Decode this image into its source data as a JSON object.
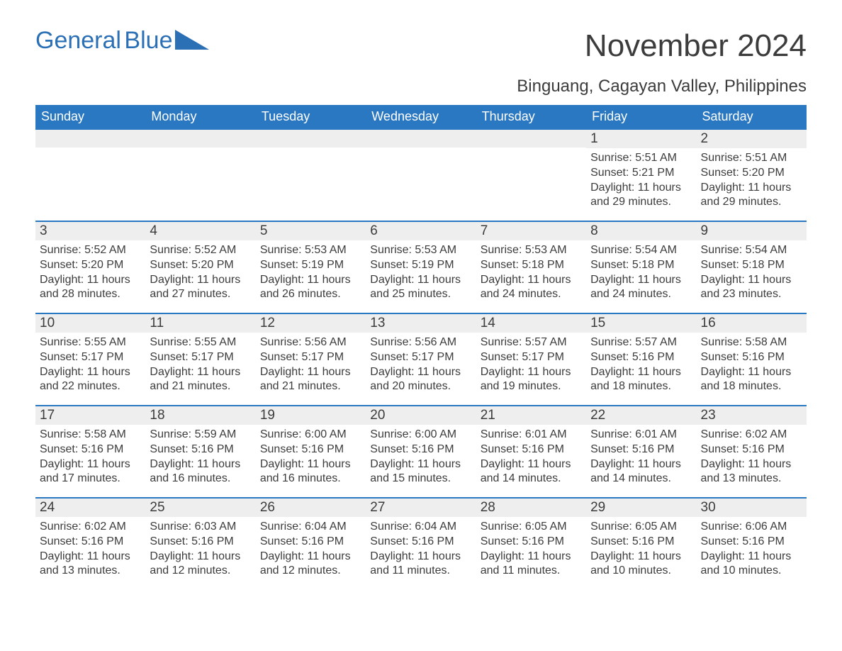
{
  "logo": {
    "text1": "General",
    "text2": "Blue"
  },
  "title": "November 2024",
  "subtitle": "Binguang, Cagayan Valley, Philippines",
  "colors": {
    "header_bg": "#2b78c2",
    "header_text": "#ffffff",
    "daynum_bg": "#eeeeee",
    "daynum_border": "#2b78c2",
    "text": "#3c3c3c",
    "logo_color": "#2b6fb5",
    "background": "#ffffff"
  },
  "fontsizes": {
    "title": 44,
    "subtitle": 24,
    "weekday_header": 18,
    "daynum": 19,
    "cell_text": 16
  },
  "weekdays": [
    "Sunday",
    "Monday",
    "Tuesday",
    "Wednesday",
    "Thursday",
    "Friday",
    "Saturday"
  ],
  "weeks": [
    [
      null,
      null,
      null,
      null,
      null,
      {
        "n": "1",
        "sr": "Sunrise: 5:51 AM",
        "ss": "Sunset: 5:21 PM",
        "dl": "Daylight: 11 hours and 29 minutes."
      },
      {
        "n": "2",
        "sr": "Sunrise: 5:51 AM",
        "ss": "Sunset: 5:20 PM",
        "dl": "Daylight: 11 hours and 29 minutes."
      }
    ],
    [
      {
        "n": "3",
        "sr": "Sunrise: 5:52 AM",
        "ss": "Sunset: 5:20 PM",
        "dl": "Daylight: 11 hours and 28 minutes."
      },
      {
        "n": "4",
        "sr": "Sunrise: 5:52 AM",
        "ss": "Sunset: 5:20 PM",
        "dl": "Daylight: 11 hours and 27 minutes."
      },
      {
        "n": "5",
        "sr": "Sunrise: 5:53 AM",
        "ss": "Sunset: 5:19 PM",
        "dl": "Daylight: 11 hours and 26 minutes."
      },
      {
        "n": "6",
        "sr": "Sunrise: 5:53 AM",
        "ss": "Sunset: 5:19 PM",
        "dl": "Daylight: 11 hours and 25 minutes."
      },
      {
        "n": "7",
        "sr": "Sunrise: 5:53 AM",
        "ss": "Sunset: 5:18 PM",
        "dl": "Daylight: 11 hours and 24 minutes."
      },
      {
        "n": "8",
        "sr": "Sunrise: 5:54 AM",
        "ss": "Sunset: 5:18 PM",
        "dl": "Daylight: 11 hours and 24 minutes."
      },
      {
        "n": "9",
        "sr": "Sunrise: 5:54 AM",
        "ss": "Sunset: 5:18 PM",
        "dl": "Daylight: 11 hours and 23 minutes."
      }
    ],
    [
      {
        "n": "10",
        "sr": "Sunrise: 5:55 AM",
        "ss": "Sunset: 5:17 PM",
        "dl": "Daylight: 11 hours and 22 minutes."
      },
      {
        "n": "11",
        "sr": "Sunrise: 5:55 AM",
        "ss": "Sunset: 5:17 PM",
        "dl": "Daylight: 11 hours and 21 minutes."
      },
      {
        "n": "12",
        "sr": "Sunrise: 5:56 AM",
        "ss": "Sunset: 5:17 PM",
        "dl": "Daylight: 11 hours and 21 minutes."
      },
      {
        "n": "13",
        "sr": "Sunrise: 5:56 AM",
        "ss": "Sunset: 5:17 PM",
        "dl": "Daylight: 11 hours and 20 minutes."
      },
      {
        "n": "14",
        "sr": "Sunrise: 5:57 AM",
        "ss": "Sunset: 5:17 PM",
        "dl": "Daylight: 11 hours and 19 minutes."
      },
      {
        "n": "15",
        "sr": "Sunrise: 5:57 AM",
        "ss": "Sunset: 5:16 PM",
        "dl": "Daylight: 11 hours and 18 minutes."
      },
      {
        "n": "16",
        "sr": "Sunrise: 5:58 AM",
        "ss": "Sunset: 5:16 PM",
        "dl": "Daylight: 11 hours and 18 minutes."
      }
    ],
    [
      {
        "n": "17",
        "sr": "Sunrise: 5:58 AM",
        "ss": "Sunset: 5:16 PM",
        "dl": "Daylight: 11 hours and 17 minutes."
      },
      {
        "n": "18",
        "sr": "Sunrise: 5:59 AM",
        "ss": "Sunset: 5:16 PM",
        "dl": "Daylight: 11 hours and 16 minutes."
      },
      {
        "n": "19",
        "sr": "Sunrise: 6:00 AM",
        "ss": "Sunset: 5:16 PM",
        "dl": "Daylight: 11 hours and 16 minutes."
      },
      {
        "n": "20",
        "sr": "Sunrise: 6:00 AM",
        "ss": "Sunset: 5:16 PM",
        "dl": "Daylight: 11 hours and 15 minutes."
      },
      {
        "n": "21",
        "sr": "Sunrise: 6:01 AM",
        "ss": "Sunset: 5:16 PM",
        "dl": "Daylight: 11 hours and 14 minutes."
      },
      {
        "n": "22",
        "sr": "Sunrise: 6:01 AM",
        "ss": "Sunset: 5:16 PM",
        "dl": "Daylight: 11 hours and 14 minutes."
      },
      {
        "n": "23",
        "sr": "Sunrise: 6:02 AM",
        "ss": "Sunset: 5:16 PM",
        "dl": "Daylight: 11 hours and 13 minutes."
      }
    ],
    [
      {
        "n": "24",
        "sr": "Sunrise: 6:02 AM",
        "ss": "Sunset: 5:16 PM",
        "dl": "Daylight: 11 hours and 13 minutes."
      },
      {
        "n": "25",
        "sr": "Sunrise: 6:03 AM",
        "ss": "Sunset: 5:16 PM",
        "dl": "Daylight: 11 hours and 12 minutes."
      },
      {
        "n": "26",
        "sr": "Sunrise: 6:04 AM",
        "ss": "Sunset: 5:16 PM",
        "dl": "Daylight: 11 hours and 12 minutes."
      },
      {
        "n": "27",
        "sr": "Sunrise: 6:04 AM",
        "ss": "Sunset: 5:16 PM",
        "dl": "Daylight: 11 hours and 11 minutes."
      },
      {
        "n": "28",
        "sr": "Sunrise: 6:05 AM",
        "ss": "Sunset: 5:16 PM",
        "dl": "Daylight: 11 hours and 11 minutes."
      },
      {
        "n": "29",
        "sr": "Sunrise: 6:05 AM",
        "ss": "Sunset: 5:16 PM",
        "dl": "Daylight: 11 hours and 10 minutes."
      },
      {
        "n": "30",
        "sr": "Sunrise: 6:06 AM",
        "ss": "Sunset: 5:16 PM",
        "dl": "Daylight: 11 hours and 10 minutes."
      }
    ]
  ]
}
